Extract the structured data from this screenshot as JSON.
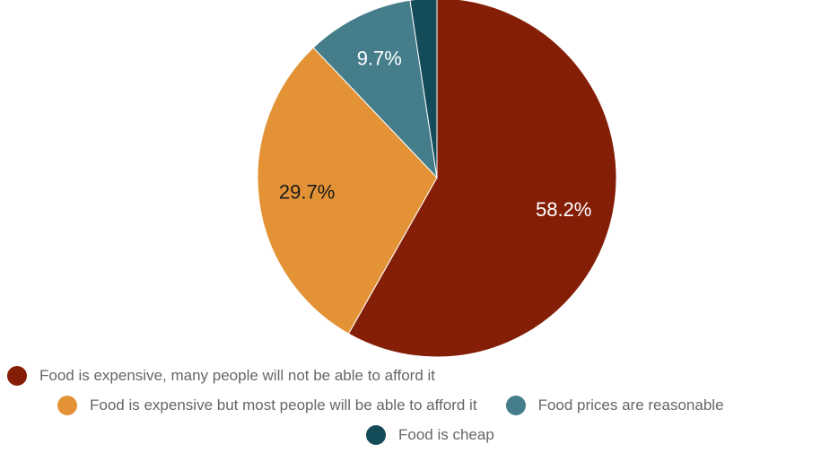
{
  "chart_data": {
    "type": "pie",
    "title": "",
    "start_angle_deg": 0,
    "direction": "clockwise",
    "slices": [
      {
        "label": "Food is expensive, many people will not be able to afford it",
        "value": 58.2,
        "display": "58.2%",
        "color": "#841e07",
        "label_color": "#ffffff"
      },
      {
        "label": "Food is expensive but most people will be able to afford it",
        "value": 29.7,
        "display": "29.7%",
        "color": "#e39236",
        "label_color": "#1a1a1a"
      },
      {
        "label": "Food prices are reasonable",
        "value": 9.7,
        "display": "9.7%",
        "color": "#457e8a",
        "label_color": "#ffffff"
      },
      {
        "label": "Food is cheap",
        "value": 2.4,
        "display": "",
        "color": "#134b58",
        "label_color": "#ffffff"
      }
    ],
    "legend": {
      "position": "bottom"
    }
  }
}
